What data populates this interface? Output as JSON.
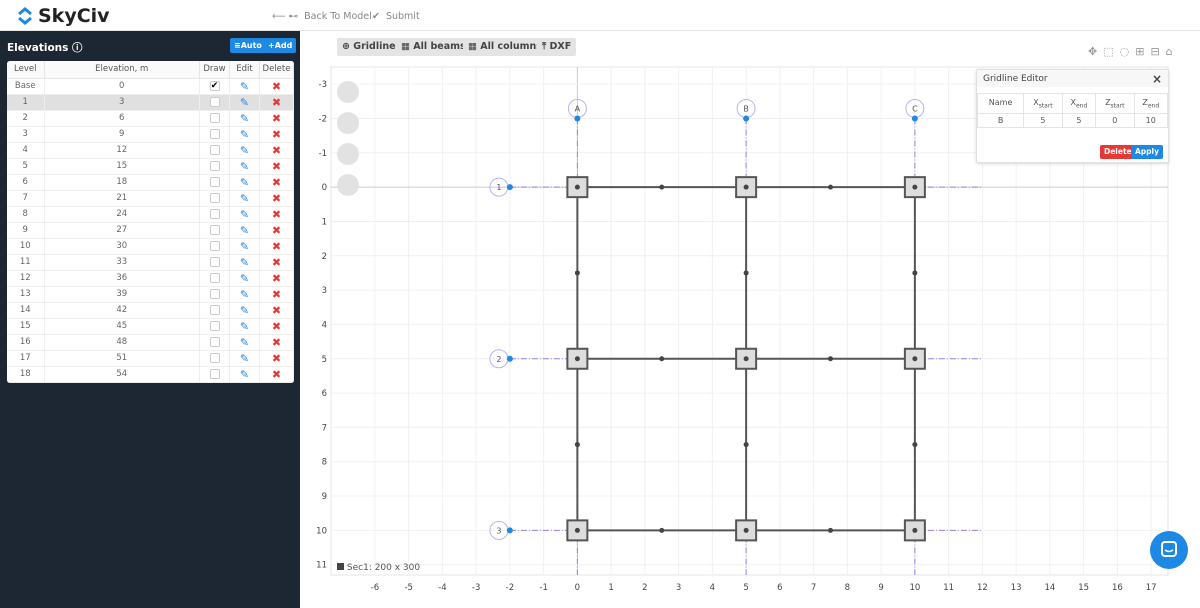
{
  "app": {
    "brand": "SkyCiv",
    "back_label": "Back To Model",
    "submit_label": "Submit"
  },
  "sidebar": {
    "title": "Elevations",
    "auto_label": "Auto",
    "add_label": "Add",
    "columns": [
      "Level",
      "Elevation, m",
      "Draw",
      "Edit",
      "Delete"
    ],
    "rows": [
      {
        "level": "Base",
        "elevation": "0",
        "draw": true
      },
      {
        "level": "1",
        "elevation": "3",
        "draw": false,
        "selected": true
      },
      {
        "level": "2",
        "elevation": "6",
        "draw": false
      },
      {
        "level": "3",
        "elevation": "9",
        "draw": false
      },
      {
        "level": "4",
        "elevation": "12",
        "draw": false
      },
      {
        "level": "5",
        "elevation": "15",
        "draw": false
      },
      {
        "level": "6",
        "elevation": "18",
        "draw": false
      },
      {
        "level": "7",
        "elevation": "21",
        "draw": false
      },
      {
        "level": "8",
        "elevation": "24",
        "draw": false
      },
      {
        "level": "9",
        "elevation": "27",
        "draw": false
      },
      {
        "level": "10",
        "elevation": "30",
        "draw": false
      },
      {
        "level": "11",
        "elevation": "33",
        "draw": false
      },
      {
        "level": "12",
        "elevation": "36",
        "draw": false
      },
      {
        "level": "13",
        "elevation": "39",
        "draw": false
      },
      {
        "level": "14",
        "elevation": "42",
        "draw": false
      },
      {
        "level": "15",
        "elevation": "45",
        "draw": false
      },
      {
        "level": "16",
        "elevation": "48",
        "draw": false
      },
      {
        "level": "17",
        "elevation": "51",
        "draw": false
      },
      {
        "level": "18",
        "elevation": "54",
        "draw": false
      }
    ]
  },
  "toolbar": {
    "gridline": "Gridline",
    "all_beams": "All beams",
    "all_columns": "All columns",
    "dxf": "DXF"
  },
  "editor": {
    "title": "Gridline Editor",
    "close": "×",
    "headers": [
      "Name",
      "X",
      "X",
      "Z",
      "Z"
    ],
    "subs": [
      "",
      "start",
      "end",
      "start",
      "end"
    ],
    "row": [
      "B",
      "5",
      "5",
      "0",
      "10"
    ],
    "delete_label": "Delete",
    "apply_label": "Apply"
  },
  "legend": {
    "section": "Sec1: 200 x 300"
  },
  "chart_data": {
    "type": "scatter",
    "xlim": [
      -7.3,
      17.5
    ],
    "ylim": [
      -3.5,
      11.3
    ],
    "y_inverted": true,
    "grid": true,
    "xticks": [
      -6,
      -5,
      -4,
      -3,
      -2,
      -1,
      0,
      1,
      2,
      3,
      4,
      5,
      6,
      7,
      8,
      9,
      10,
      11,
      12,
      13,
      14,
      15,
      16,
      17
    ],
    "yticks": [
      -3,
      -2,
      -1,
      0,
      1,
      2,
      3,
      4,
      5,
      6,
      7,
      8,
      9,
      10,
      11
    ],
    "gridlines_x": [
      {
        "name": "A",
        "x": 0
      },
      {
        "name": "B",
        "x": 5
      },
      {
        "name": "C",
        "x": 10
      }
    ],
    "gridlines_z": [
      {
        "name": "1",
        "z": 0
      },
      {
        "name": "2",
        "z": 5
      },
      {
        "name": "3",
        "z": 10
      }
    ],
    "gridline_extent": {
      "x_from": -2,
      "x_to": 12,
      "z_from": -2
    },
    "columns": [
      [
        0,
        0
      ],
      [
        5,
        0
      ],
      [
        10,
        0
      ],
      [
        0,
        5
      ],
      [
        5,
        5
      ],
      [
        10,
        5
      ],
      [
        0,
        10
      ],
      [
        5,
        10
      ],
      [
        10,
        10
      ]
    ],
    "beam_nodes": [
      [
        2.5,
        0
      ],
      [
        7.5,
        0
      ],
      [
        2.5,
        5
      ],
      [
        7.5,
        5
      ],
      [
        2.5,
        10
      ],
      [
        7.5,
        10
      ],
      [
        0,
        2.5
      ],
      [
        5,
        2.5
      ],
      [
        10,
        2.5
      ],
      [
        0,
        7.5
      ],
      [
        5,
        7.5
      ],
      [
        10,
        7.5
      ]
    ],
    "colors": {
      "gridline": "#8c86e0",
      "marker": "#1e88e5",
      "member": "#555555"
    }
  },
  "colors": {
    "accent": "#1e88e5",
    "sidebar": "#1d2733",
    "danger": "#e53935"
  }
}
